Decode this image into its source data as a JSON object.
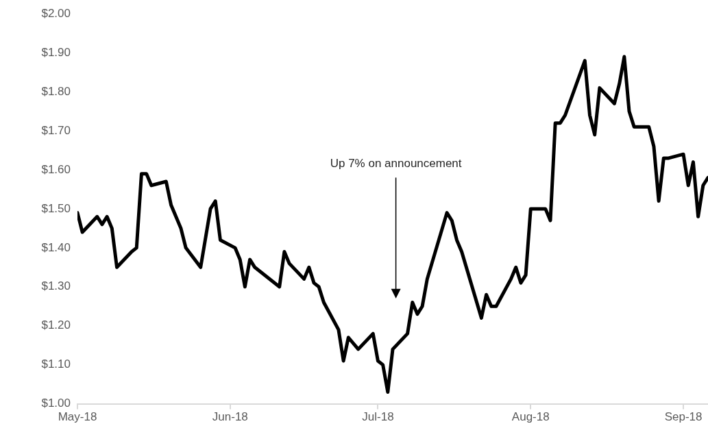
{
  "chart_data": {
    "type": "line",
    "x": [
      "2018-05-01",
      "2018-05-02",
      "2018-05-05",
      "2018-05-06",
      "2018-05-07",
      "2018-05-08",
      "2018-05-09",
      "2018-05-12",
      "2018-05-13",
      "2018-05-14",
      "2018-05-15",
      "2018-05-16",
      "2018-05-19",
      "2018-05-20",
      "2018-05-22",
      "2018-05-23",
      "2018-05-26",
      "2018-05-28",
      "2018-05-29",
      "2018-05-30",
      "2018-06-02",
      "2018-06-03",
      "2018-06-04",
      "2018-06-05",
      "2018-06-06",
      "2018-06-11",
      "2018-06-12",
      "2018-06-13",
      "2018-06-16",
      "2018-06-17",
      "2018-06-18",
      "2018-06-19",
      "2018-06-20",
      "2018-06-23",
      "2018-06-24",
      "2018-06-25",
      "2018-06-27",
      "2018-06-30",
      "2018-07-01",
      "2018-07-02",
      "2018-07-03",
      "2018-07-04",
      "2018-07-07",
      "2018-07-08",
      "2018-07-09",
      "2018-07-10",
      "2018-07-11",
      "2018-07-15",
      "2018-07-16",
      "2018-07-17",
      "2018-07-18",
      "2018-07-22",
      "2018-07-23",
      "2018-07-24",
      "2018-07-25",
      "2018-07-28",
      "2018-07-29",
      "2018-07-30",
      "2018-07-31",
      "2018-08-01",
      "2018-08-04",
      "2018-08-05",
      "2018-08-06",
      "2018-08-07",
      "2018-08-08",
      "2018-08-12",
      "2018-08-13",
      "2018-08-14",
      "2018-08-15",
      "2018-08-18",
      "2018-08-19",
      "2018-08-20",
      "2018-08-21",
      "2018-08-22",
      "2018-08-25",
      "2018-08-26",
      "2018-08-27",
      "2018-08-28",
      "2018-08-29",
      "2018-09-01",
      "2018-09-02",
      "2018-09-03",
      "2018-09-04",
      "2018-09-05",
      "2018-09-06"
    ],
    "series": [
      {
        "color": "#000000",
        "values": [
          1.49,
          1.44,
          1.48,
          1.46,
          1.48,
          1.45,
          1.35,
          1.39,
          1.4,
          1.59,
          1.59,
          1.56,
          1.57,
          1.51,
          1.45,
          1.4,
          1.35,
          1.5,
          1.52,
          1.42,
          1.4,
          1.37,
          1.3,
          1.37,
          1.35,
          1.3,
          1.39,
          1.36,
          1.32,
          1.35,
          1.31,
          1.3,
          1.26,
          1.19,
          1.11,
          1.17,
          1.14,
          1.18,
          1.11,
          1.1,
          1.03,
          1.14,
          1.18,
          1.26,
          1.23,
          1.25,
          1.32,
          1.49,
          1.47,
          1.42,
          1.39,
          1.22,
          1.28,
          1.25,
          1.25,
          1.32,
          1.35,
          1.31,
          1.33,
          1.5,
          1.5,
          1.47,
          1.72,
          1.72,
          1.74,
          1.88,
          1.74,
          1.69,
          1.81,
          1.77,
          1.82,
          1.89,
          1.75,
          1.71,
          1.71,
          1.66,
          1.52,
          1.63,
          1.63,
          1.64,
          1.56,
          1.62,
          1.48,
          1.56,
          1.58
        ]
      }
    ],
    "xlim": [
      "2018-05-01",
      "2018-09-06"
    ],
    "xticks": [
      {
        "value": "2018-05-01",
        "label": "May-18"
      },
      {
        "value": "2018-06-01",
        "label": "Jun-18"
      },
      {
        "value": "2018-07-01",
        "label": "Jul-18"
      },
      {
        "value": "2018-08-01",
        "label": "Aug-18"
      },
      {
        "value": "2018-09-01",
        "label": "Sep-18"
      }
    ],
    "ylim": [
      1.0,
      2.0
    ],
    "yticks": [
      {
        "value": 1.0,
        "label": "$1.00"
      },
      {
        "value": 1.1,
        "label": "$1.10"
      },
      {
        "value": 1.2,
        "label": "$1.20"
      },
      {
        "value": 1.3,
        "label": "$1.30"
      },
      {
        "value": 1.4,
        "label": "$1.40"
      },
      {
        "value": 1.5,
        "label": "$1.50"
      },
      {
        "value": 1.6,
        "label": "$1.60"
      },
      {
        "value": 1.7,
        "label": "$1.70"
      },
      {
        "value": 1.8,
        "label": "$1.80"
      },
      {
        "value": 1.9,
        "label": "$1.90"
      },
      {
        "value": 2.0,
        "label": "$2.00"
      }
    ],
    "annotations": [
      "Up 7% on announcement"
    ],
    "grid": false,
    "legend": false,
    "marker": "none",
    "line_style": "solid"
  }
}
